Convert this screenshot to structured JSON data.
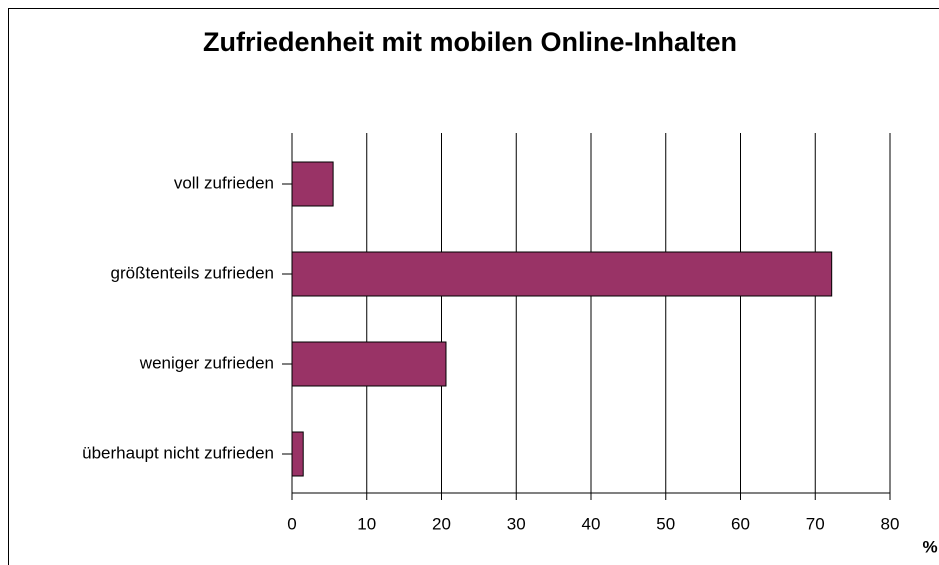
{
  "chart_data": {
    "type": "bar",
    "orientation": "horizontal",
    "title": "Zufriedenheit mit mobilen Online-Inhalten",
    "x_label": "%",
    "categories": [
      "voll zufrieden",
      "größtenteils zufrieden",
      "weniger zufrieden",
      "überhaupt nicht zufrieden"
    ],
    "values": [
      5.5,
      72.2,
      20.6,
      1.5
    ],
    "color": "#993366",
    "xlim": [
      0,
      80
    ],
    "xticks": [
      0,
      10,
      20,
      30,
      40,
      50,
      60,
      70,
      80
    ],
    "grid": true
  }
}
